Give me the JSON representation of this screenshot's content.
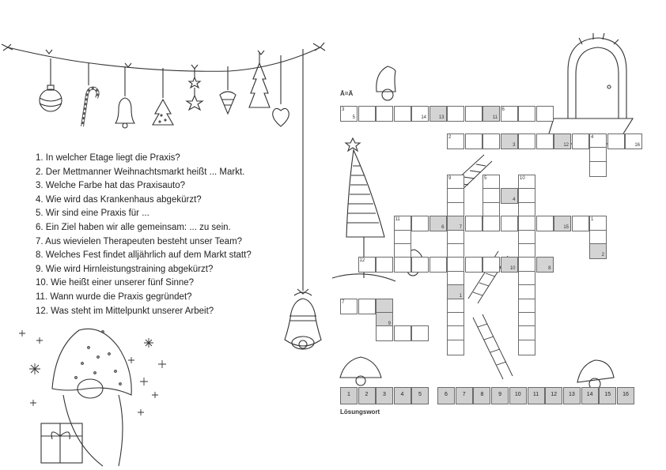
{
  "questions": [
    "1. In welcher Etage liegt die Praxis?",
    "2. Der Mettmanner Weihnachtsmarkt heißt ... Markt.",
    "3. Welche Farbe hat das Praxisauto?",
    "4. Wie wird das Krankenhaus abgekürzt?",
    "5. Wir sind eine Praxis für ...",
    "6. Ein Ziel haben wir alle gemeinsam: ... zu sein.",
    "7. Aus wievielen Therapeuten besteht unser Team?",
    "8. Welches Fest findet alljährlich auf dem Markt statt?",
    "9. Wie wird Hirnleistungstraining abgekürzt?",
    "10. Wie heißt einer unserer fünf Sinne?",
    "11. Wann wurde die Praxis gegründet?",
    "12. Was steht im Mittelpunkt unserer Arbeit?"
  ],
  "grid": {
    "note": "Ä=Ä",
    "solution_label": "Lösungswort",
    "shaded_color": "#d4d4d4",
    "cells": [
      {
        "r": 0,
        "c": 0,
        "clue": "3",
        "num": "5"
      },
      {
        "r": 0,
        "c": 1
      },
      {
        "r": 0,
        "c": 2
      },
      {
        "r": 0,
        "c": 3
      },
      {
        "r": 0,
        "c": 4,
        "num": "14"
      },
      {
        "r": 0,
        "c": 5,
        "num": "13",
        "shade": true
      },
      {
        "r": 0,
        "c": 6
      },
      {
        "r": 0,
        "c": 7
      },
      {
        "r": 0,
        "c": 8,
        "num": "11",
        "shade": true
      },
      {
        "r": 0,
        "c": 9,
        "clue": "6"
      },
      {
        "r": 0,
        "c": 10
      },
      {
        "r": 0,
        "c": 11
      },
      {
        "r": 2,
        "c": 6,
        "clue": "2"
      },
      {
        "r": 2,
        "c": 7
      },
      {
        "r": 2,
        "c": 8
      },
      {
        "r": 2,
        "c": 9,
        "num": "3",
        "shade": true
      },
      {
        "r": 2,
        "c": 10
      },
      {
        "r": 2,
        "c": 11
      },
      {
        "r": 2,
        "c": 12,
        "num": "12",
        "shade": true
      },
      {
        "r": 2,
        "c": 13
      },
      {
        "r": 2,
        "c": 14,
        "clue": "4"
      },
      {
        "r": 2,
        "c": 15
      },
      {
        "r": 2,
        "c": 16,
        "num": "16"
      },
      {
        "r": 3,
        "c": 14
      },
      {
        "r": 4,
        "c": 14
      },
      {
        "r": 5,
        "c": 6,
        "clue": "9"
      },
      {
        "r": 5,
        "c": 8,
        "clue": "5"
      },
      {
        "r": 5,
        "c": 10,
        "clue": "10"
      },
      {
        "r": 6,
        "c": 6
      },
      {
        "r": 6,
        "c": 8
      },
      {
        "r": 6,
        "c": 9,
        "num": "4",
        "shade": true
      },
      {
        "r": 6,
        "c": 10
      },
      {
        "r": 7,
        "c": 6
      },
      {
        "r": 7,
        "c": 8
      },
      {
        "r": 7,
        "c": 10
      },
      {
        "r": 8,
        "c": 3,
        "clue": "11"
      },
      {
        "r": 8,
        "c": 4
      },
      {
        "r": 8,
        "c": 5,
        "num": "6",
        "shade": true
      },
      {
        "r": 8,
        "c": 6,
        "num": "7",
        "shade": true
      },
      {
        "r": 8,
        "c": 7
      },
      {
        "r": 8,
        "c": 8
      },
      {
        "r": 8,
        "c": 9
      },
      {
        "r": 8,
        "c": 10
      },
      {
        "r": 8,
        "c": 11
      },
      {
        "r": 8,
        "c": 12,
        "num": "15",
        "shade": true
      },
      {
        "r": 8,
        "c": 13
      },
      {
        "r": 8,
        "c": 14,
        "clue": "1"
      },
      {
        "r": 9,
        "c": 3
      },
      {
        "r": 9,
        "c": 6
      },
      {
        "r": 9,
        "c": 10
      },
      {
        "r": 9,
        "c": 14
      },
      {
        "r": 10,
        "c": 14,
        "num": "2",
        "shade": true
      },
      {
        "r": 10,
        "c": 3
      },
      {
        "r": 10,
        "c": 6
      },
      {
        "r": 10,
        "c": 10
      },
      {
        "r": 11,
        "c": 1,
        "clue": "12"
      },
      {
        "r": 11,
        "c": 2
      },
      {
        "r": 11,
        "c": 3
      },
      {
        "r": 11,
        "c": 4
      },
      {
        "r": 11,
        "c": 5
      },
      {
        "r": 11,
        "c": 6
      },
      {
        "r": 11,
        "c": 7
      },
      {
        "r": 11,
        "c": 8
      },
      {
        "r": 11,
        "c": 9,
        "num": "10",
        "shade": true
      },
      {
        "r": 11,
        "c": 10
      },
      {
        "r": 11,
        "c": 11,
        "num": "8",
        "shade": true
      },
      {
        "r": 12,
        "c": 6
      },
      {
        "r": 12,
        "c": 10
      },
      {
        "r": 13,
        "c": 6,
        "num": "1",
        "shade": true
      },
      {
        "r": 13,
        "c": 10
      },
      {
        "r": 14,
        "c": 0,
        "clue": "7"
      },
      {
        "r": 14,
        "c": 1
      },
      {
        "r": 14,
        "c": 2,
        "shade": true
      },
      {
        "r": 14,
        "c": 6
      },
      {
        "r": 14,
        "c": 10
      },
      {
        "r": 15,
        "c": 2,
        "num": "9",
        "shade": true
      },
      {
        "r": 15,
        "c": 6
      },
      {
        "r": 15,
        "c": 10
      },
      {
        "r": 16,
        "c": 2
      },
      {
        "r": 16,
        "c": 3
      },
      {
        "r": 16,
        "c": 4
      },
      {
        "r": 16,
        "c": 6
      },
      {
        "r": 16,
        "c": 10
      },
      {
        "r": 17,
        "c": 6
      },
      {
        "r": 17,
        "c": 10
      }
    ],
    "solution": [
      "1",
      "2",
      "3",
      "4",
      "5",
      "6",
      "7",
      "8",
      "9",
      "10",
      "11",
      "12",
      "13",
      "14",
      "15",
      "16"
    ]
  },
  "icons": [
    "garland-icon",
    "ornament-icon",
    "candy-cane-icon",
    "bell-icon",
    "tree-icon",
    "star-icon",
    "heart-icon",
    "gnome-icon",
    "door-icon",
    "sparkle-icon",
    "gift-icon"
  ]
}
